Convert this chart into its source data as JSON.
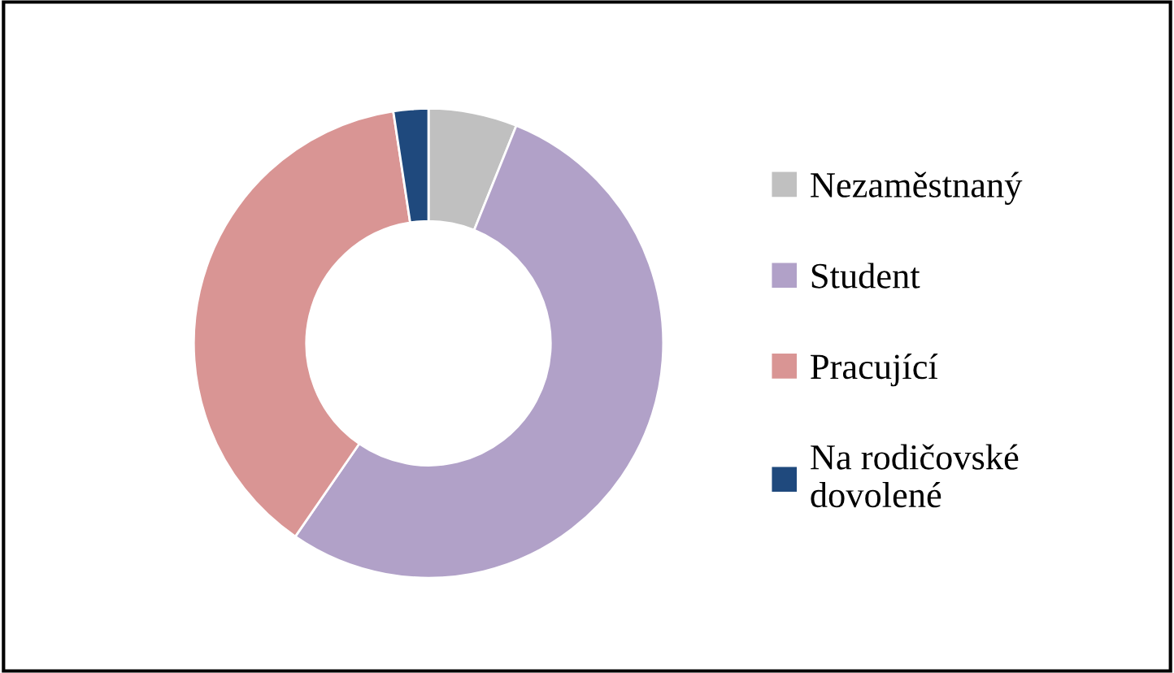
{
  "chart_data": {
    "type": "donut",
    "categories": [
      "Nezaměstnaný",
      "Student",
      "Pracující",
      "Na rodičovské\ndovolené"
    ],
    "values": [
      6.1,
      53.5,
      38,
      2.4
    ],
    "colors": [
      "#c0c0c0",
      "#b1a1c8",
      "#d99594",
      "#1f497d"
    ],
    "legend": "right"
  }
}
